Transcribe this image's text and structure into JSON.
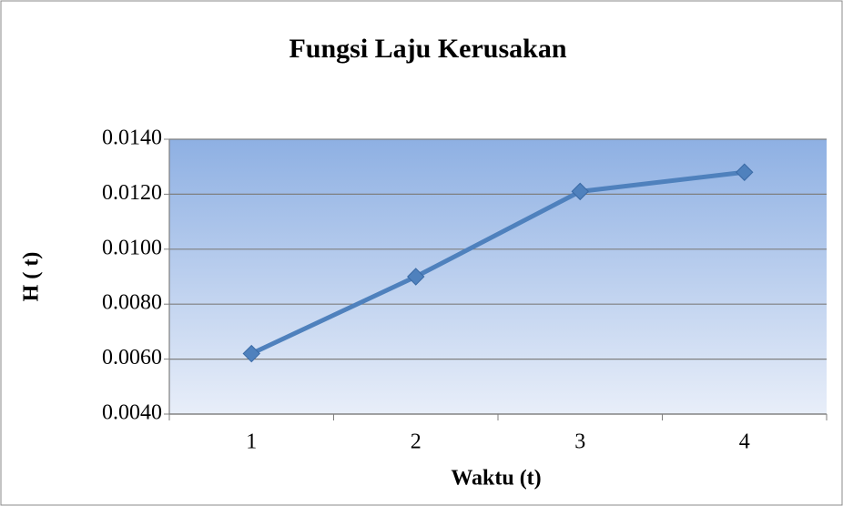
{
  "chart_data": {
    "type": "line",
    "title": "Fungsi Laju Kerusakan",
    "x_label": "Waktu (t)",
    "y_label": "H ( t)",
    "categories": [
      "1",
      "2",
      "3",
      "4"
    ],
    "series": [
      {
        "name": "H ( t)",
        "color": "#4f81bd",
        "values": [
          0.0062,
          0.009,
          0.0121,
          0.0128
        ]
      }
    ],
    "ylim": [
      0.004,
      0.014
    ],
    "yticks": [
      {
        "value": 0.004,
        "label": "0.0040"
      },
      {
        "value": 0.006,
        "label": "0.0060"
      },
      {
        "value": 0.008,
        "label": "0.0080"
      },
      {
        "value": 0.01,
        "label": "0.0100"
      },
      {
        "value": 0.012,
        "label": "0.0120"
      },
      {
        "value": 0.014,
        "label": "0.0140"
      }
    ],
    "grid": true
  }
}
